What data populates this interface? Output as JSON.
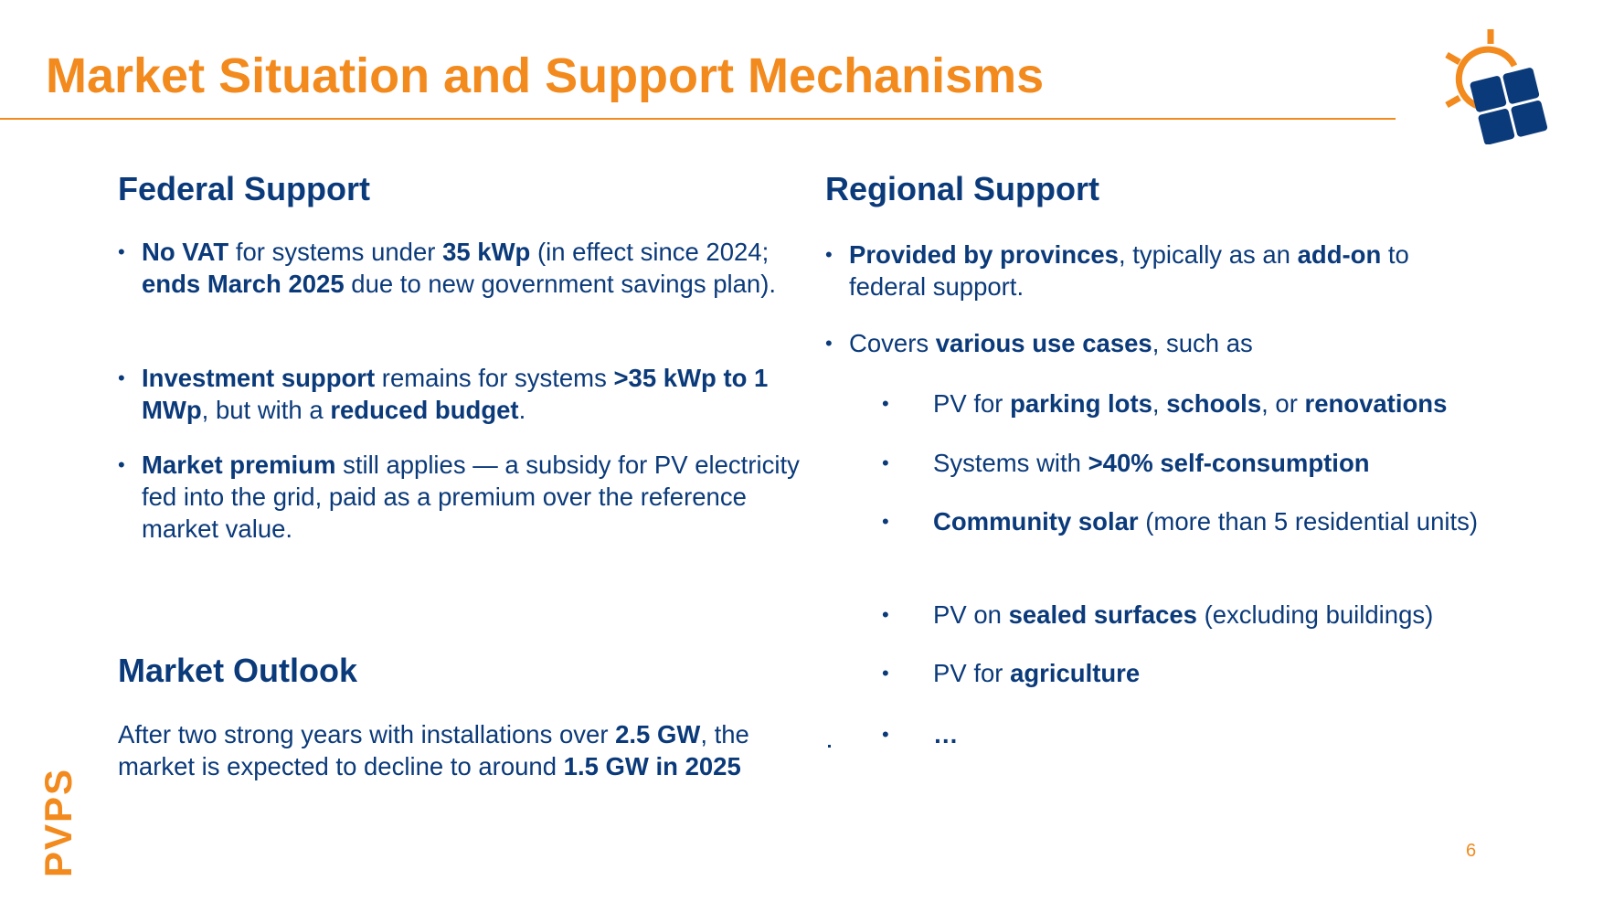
{
  "title": "Market Situation and Support Mechanisms",
  "colors": {
    "accent": "#F28A1E",
    "text": "#0B3A7A"
  },
  "logo": {
    "icon": "sun-and-solar-panel-logo"
  },
  "federal": {
    "heading": "Federal Support",
    "items": [
      [
        {
          "t": "No VAT",
          "b": true
        },
        {
          "t": " for systems under "
        },
        {
          "t": "35 kWp",
          "b": true
        },
        {
          "t": " (in effect since 2024; "
        },
        {
          "t": "ends March 2025",
          "b": true
        },
        {
          "t": " due to new government savings plan)."
        }
      ],
      [
        {
          "t": "Investment support",
          "b": true
        },
        {
          "t": " remains for systems "
        },
        {
          "t": ">35 kWp to 1 MWp",
          "b": true
        },
        {
          "t": ", but with a "
        },
        {
          "t": "reduced budget",
          "b": true
        },
        {
          "t": "."
        }
      ],
      [
        {
          "t": "Market premium",
          "b": true
        },
        {
          "t": " still applies — a subsidy for PV electricity fed into the grid, paid as a premium over the reference market value."
        }
      ]
    ]
  },
  "outlook": {
    "heading": "Market Outlook",
    "text": [
      {
        "t": "After two strong years with installations over "
      },
      {
        "t": "2.5 GW",
        "b": true
      },
      {
        "t": ", the market is expected to decline to around "
      },
      {
        "t": "1.5 GW in 2025",
        "b": true
      }
    ]
  },
  "regional": {
    "heading": "Regional Support",
    "items": [
      [
        {
          "t": "Provided by provinces",
          "b": true
        },
        {
          "t": ", typically as an "
        },
        {
          "t": "add-on",
          "b": true
        },
        {
          "t": " to federal support."
        }
      ],
      [
        {
          "t": "Covers "
        },
        {
          "t": "various use cases",
          "b": true
        },
        {
          "t": ", such as"
        }
      ]
    ],
    "subitems": [
      [
        {
          "t": "PV for "
        },
        {
          "t": "parking lots",
          "b": true
        },
        {
          "t": ", "
        },
        {
          "t": "schools",
          "b": true
        },
        {
          "t": ", or "
        },
        {
          "t": "renovations",
          "b": true
        }
      ],
      [
        {
          "t": "Systems with "
        },
        {
          "t": ">40% self-consumption",
          "b": true
        }
      ],
      [
        {
          "t": "Community solar",
          "b": true
        },
        {
          "t": " (more than 5 residential units)"
        }
      ],
      [
        {
          "t": "PV on "
        },
        {
          "t": "sealed surfaces",
          "b": true
        },
        {
          "t": " (excluding buildings)"
        }
      ],
      [
        {
          "t": "PV for "
        },
        {
          "t": "agriculture",
          "b": true
        }
      ],
      [
        {
          "t": "…",
          "b": true
        }
      ]
    ]
  },
  "bullet": "•",
  "footer": {
    "page_number": "6",
    "brand": "PVPS"
  }
}
